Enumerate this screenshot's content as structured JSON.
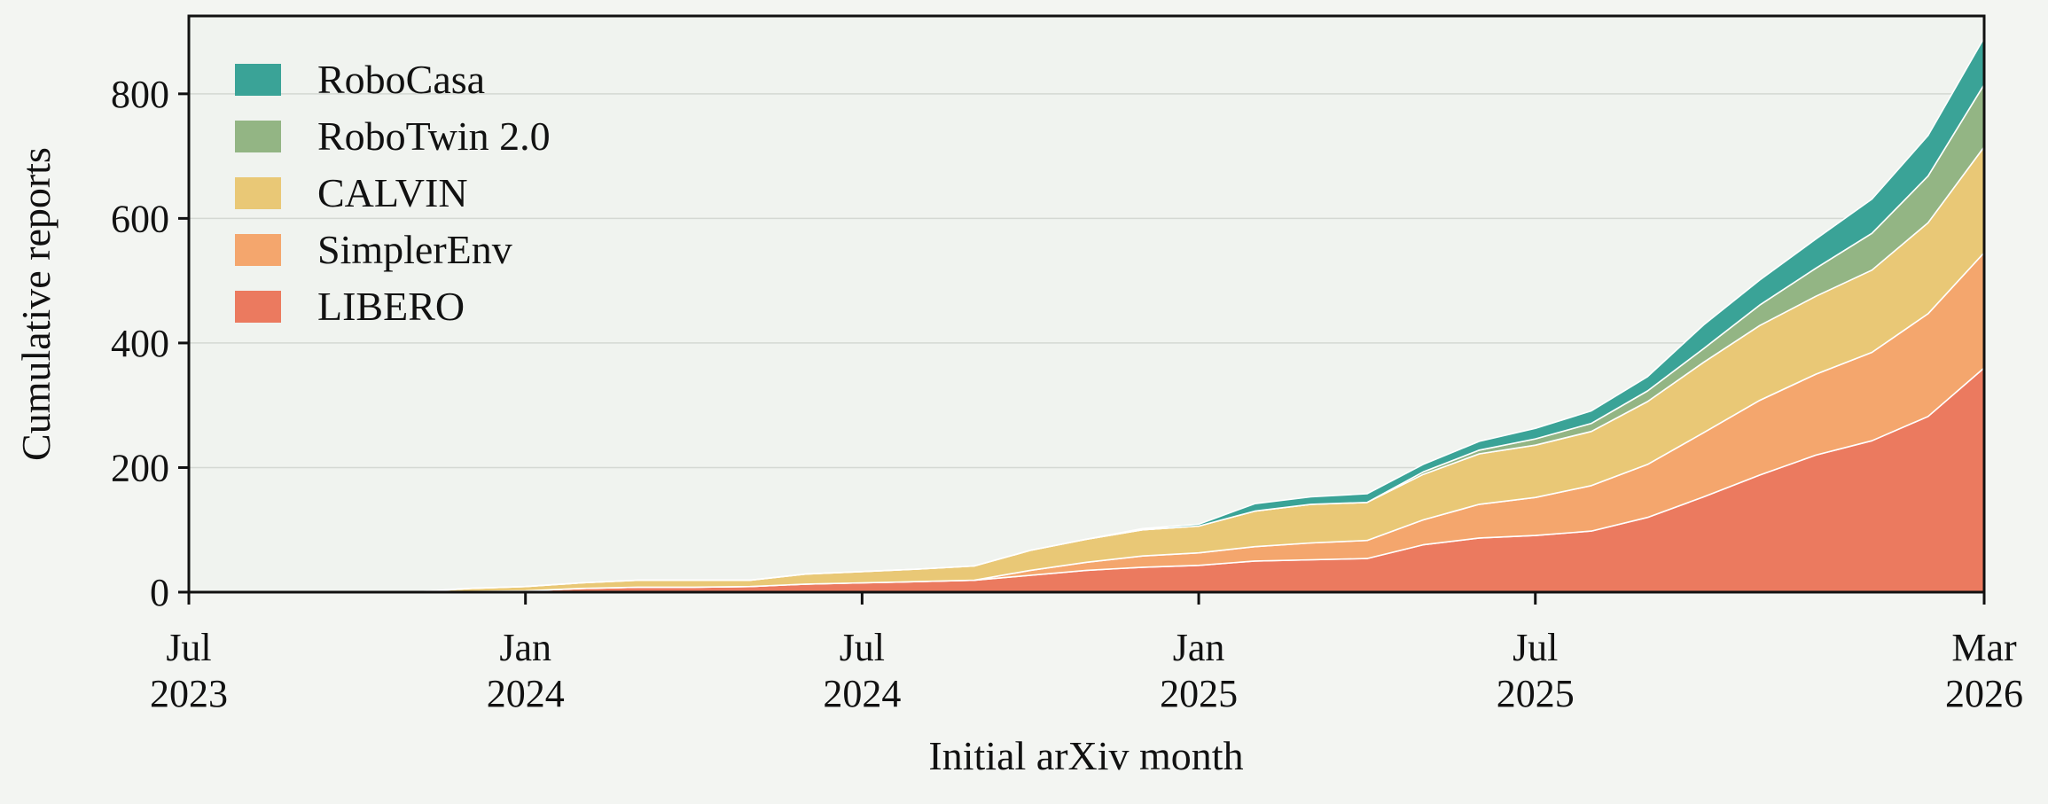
{
  "chart_data": {
    "type": "area",
    "stacked": true,
    "xlabel": "Initial arXiv month",
    "ylabel": "Cumulative reports",
    "ylim": [
      0,
      925
    ],
    "xlim": [
      "2023-07",
      "2026-03"
    ],
    "grid": "horizontal",
    "legend_placement": "top-left",
    "y_ticks": [
      {
        "value": 0,
        "label": "0"
      },
      {
        "value": 200,
        "label": "200"
      },
      {
        "value": 400,
        "label": "400"
      },
      {
        "value": 600,
        "label": "600"
      },
      {
        "value": 800,
        "label": "800"
      }
    ],
    "x_ticks": [
      {
        "month": "2023-07",
        "line1": "Jul",
        "line2": "2023"
      },
      {
        "month": "2024-01",
        "line1": "Jan",
        "line2": "2024"
      },
      {
        "month": "2024-07",
        "line1": "Jul",
        "line2": "2024"
      },
      {
        "month": "2025-01",
        "line1": "Jan",
        "line2": "2025"
      },
      {
        "month": "2025-07",
        "line1": "Jul",
        "line2": "2025"
      },
      {
        "month": "2026-03",
        "line1": "Mar",
        "line2": "2026"
      }
    ],
    "x": [
      "2023-07",
      "2023-08",
      "2023-09",
      "2023-10",
      "2023-11",
      "2023-12",
      "2024-01",
      "2024-02",
      "2024-03",
      "2024-04",
      "2024-05",
      "2024-06",
      "2024-07",
      "2024-08",
      "2024-09",
      "2024-10",
      "2024-11",
      "2024-12",
      "2025-01",
      "2025-02",
      "2025-03",
      "2025-04",
      "2025-05",
      "2025-06",
      "2025-07",
      "2025-08",
      "2025-09",
      "2025-10",
      "2025-11",
      "2025-12",
      "2026-01",
      "2026-02",
      "2026-03"
    ],
    "series": [
      {
        "name": "LIBERO",
        "color": "#eb7a5f",
        "values": [
          0,
          0,
          0,
          0,
          0,
          1,
          2,
          6,
          8,
          8,
          9,
          13,
          15,
          17,
          19,
          27,
          35,
          40,
          43,
          50,
          52,
          54,
          76,
          87,
          91,
          98,
          120,
          153,
          188,
          220,
          243,
          282,
          360
        ]
      },
      {
        "name": "SimplerEnv",
        "color": "#f4a66d",
        "values": [
          0,
          0,
          0,
          0,
          0,
          0,
          0,
          0,
          0,
          0,
          0,
          0,
          0,
          0,
          0,
          8,
          13,
          18,
          20,
          23,
          27,
          29,
          40,
          54,
          61,
          73,
          85,
          103,
          120,
          130,
          142,
          165,
          185
        ]
      },
      {
        "name": "CALVIN",
        "color": "#e9c876",
        "values": [
          0,
          0,
          0,
          0,
          0,
          5,
          7,
          9,
          11,
          11,
          10,
          16,
          18,
          20,
          23,
          32,
          37,
          42,
          43,
          57,
          62,
          61,
          73,
          81,
          84,
          87,
          101,
          113,
          120,
          125,
          132,
          146,
          170
        ]
      },
      {
        "name": "RoboTwin 2.0",
        "color": "#93b584",
        "values": [
          0,
          0,
          0,
          0,
          0,
          0,
          0,
          0,
          0,
          0,
          0,
          0,
          0,
          0,
          0,
          0,
          0,
          0,
          0,
          0,
          0,
          0,
          4,
          6,
          10,
          13,
          17,
          22,
          33,
          45,
          59,
          75,
          100
        ]
      },
      {
        "name": "RoboCasa",
        "color": "#3aa397",
        "values": [
          0,
          0,
          0,
          0,
          0,
          0,
          0,
          0,
          0,
          0,
          0,
          0,
          0,
          0,
          0,
          0,
          0,
          2,
          3,
          12,
          12,
          14,
          12,
          14,
          17,
          20,
          23,
          38,
          40,
          47,
          55,
          65,
          75
        ]
      }
    ]
  }
}
